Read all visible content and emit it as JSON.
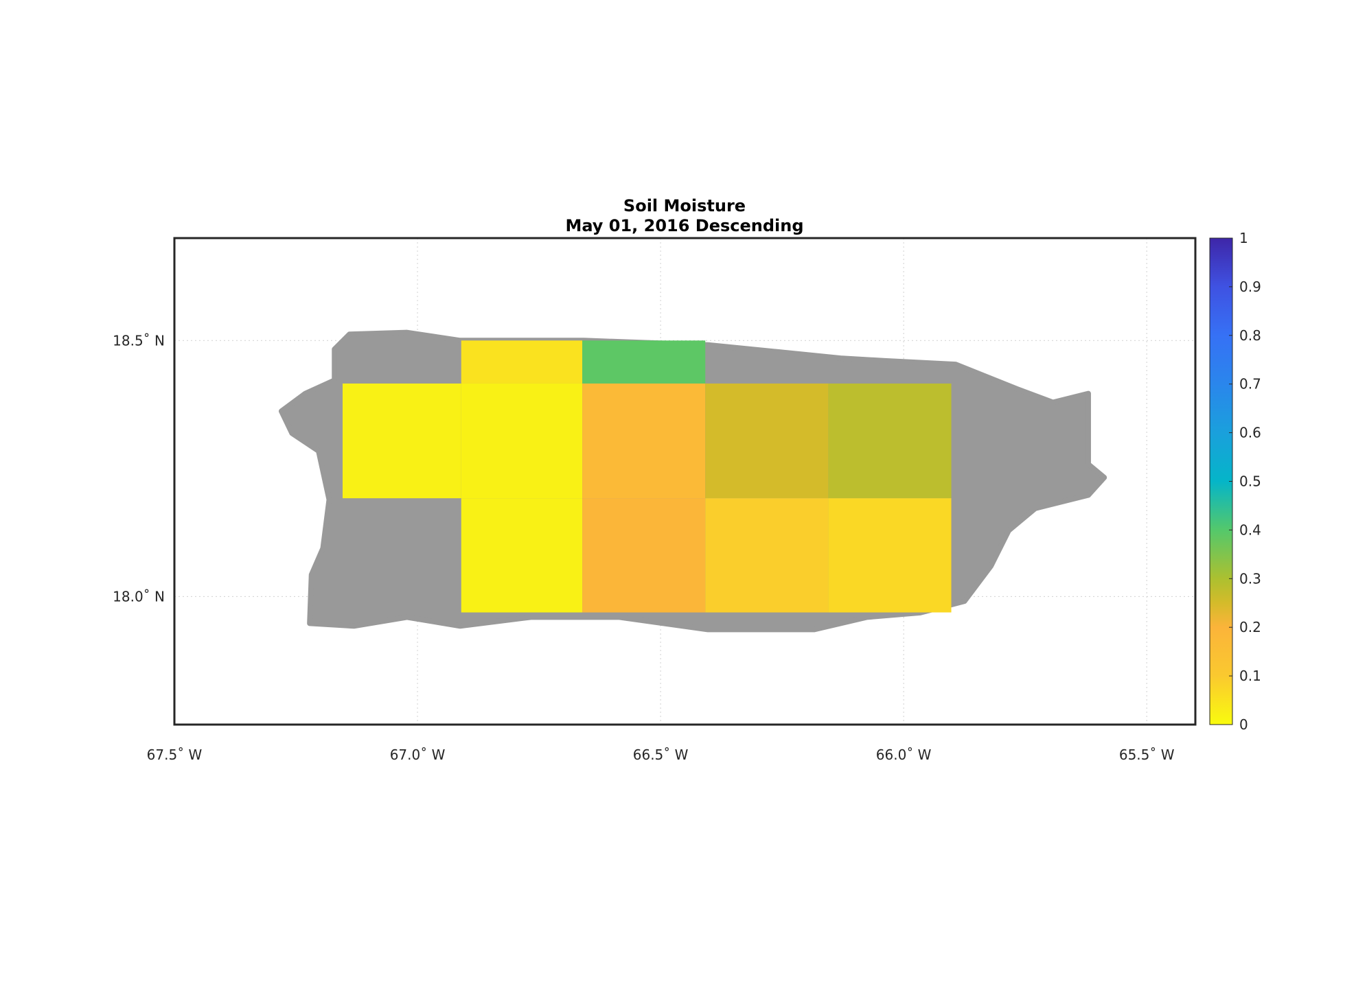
{
  "chart_data": {
    "type": "map-grid",
    "title": [
      "Soil Moisture",
      "May 01, 2016 Descending"
    ],
    "xlim": [
      -67.5,
      -65.4
    ],
    "ylim": [
      17.75,
      18.7
    ],
    "xticks": [
      {
        "value": -67.5,
        "label": "67.5˚ W"
      },
      {
        "value": -67.0,
        "label": "67.0˚ W"
      },
      {
        "value": -66.5,
        "label": "66.5˚ W"
      },
      {
        "value": -66.0,
        "label": "66.0˚ W"
      },
      {
        "value": -65.5,
        "label": "65.5˚ W"
      }
    ],
    "yticks": [
      {
        "value": 18.0,
        "label": "18.0˚ N"
      },
      {
        "value": 18.5,
        "label": "18.5˚ N"
      }
    ],
    "grid": true,
    "colormap": "parula-reversed",
    "clim": [
      0,
      1
    ],
    "cticks": [
      0,
      0.1,
      0.2,
      0.3,
      0.4,
      0.5,
      0.6,
      0.7,
      0.8,
      0.9,
      1
    ],
    "cells": [
      {
        "lon": [
          -66.91,
          -66.661
        ],
        "lat": [
          18.416,
          18.5
        ],
        "value": 0.05
      },
      {
        "lon": [
          -66.661,
          -66.408
        ],
        "lat": [
          18.416,
          18.5
        ],
        "value": 0.39
      },
      {
        "lon": [
          -67.154,
          -66.91
        ],
        "lat": [
          18.192,
          18.416
        ],
        "value": 0.02
      },
      {
        "lon": [
          -66.91,
          -66.661
        ],
        "lat": [
          18.192,
          18.416
        ],
        "value": 0.02
      },
      {
        "lon": [
          -66.661,
          -66.408
        ],
        "lat": [
          18.192,
          18.416
        ],
        "value": 0.17
      },
      {
        "lon": [
          -66.408,
          -66.155
        ],
        "lat": [
          18.192,
          18.416
        ],
        "value": 0.25
      },
      {
        "lon": [
          -66.155,
          -65.902
        ],
        "lat": [
          18.192,
          18.416
        ],
        "value": 0.28
      },
      {
        "lon": [
          -66.91,
          -66.661
        ],
        "lat": [
          17.969,
          18.192
        ],
        "value": 0.02
      },
      {
        "lon": [
          -66.661,
          -66.408
        ],
        "lat": [
          17.969,
          18.192
        ],
        "value": 0.19
      },
      {
        "lon": [
          -66.408,
          -66.155
        ],
        "lat": [
          17.969,
          18.192
        ],
        "value": 0.09
      },
      {
        "lon": [
          -66.155,
          -65.902
        ],
        "lat": [
          17.969,
          18.192
        ],
        "value": 0.07
      }
    ]
  }
}
